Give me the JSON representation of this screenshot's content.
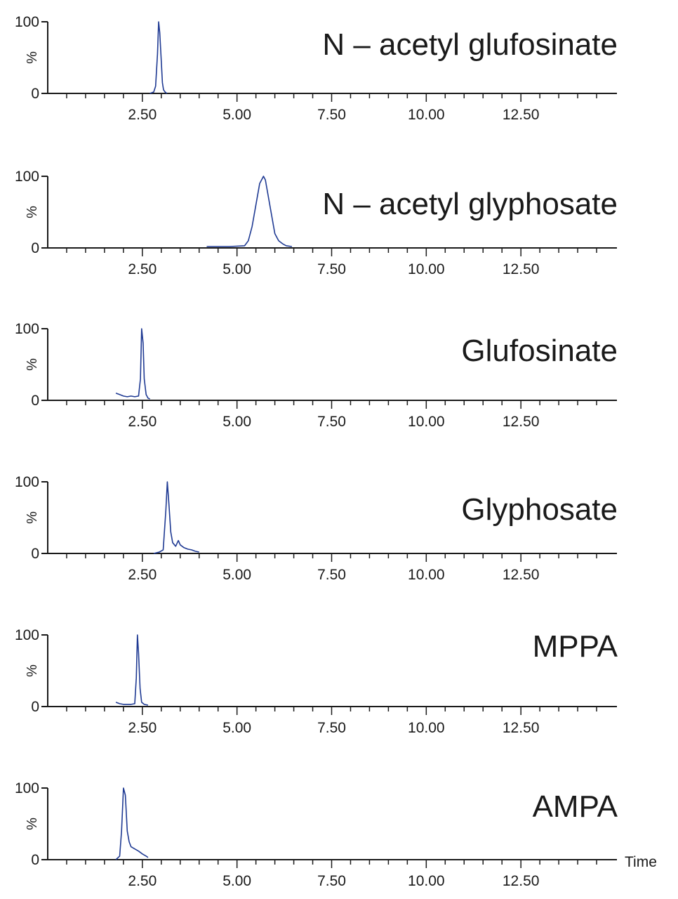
{
  "chart_data": [
    {
      "type": "line",
      "title": "N – acetyl glufosinate",
      "ylabel": "%",
      "xlim": [
        0,
        15
      ],
      "ylim": [
        0,
        100
      ],
      "y_ticks": [
        "100",
        "0"
      ],
      "x_tick_labels": [
        "2.50",
        "5.00",
        "7.50",
        "10.00",
        "12.50"
      ],
      "line_color": "#1f3a93",
      "series": [
        {
          "x": [
            2.7,
            2.8,
            2.85,
            2.9,
            2.93,
            2.96,
            3.0,
            3.03,
            3.06,
            3.1,
            3.15
          ],
          "y": [
            0,
            2,
            10,
            55,
            100,
            85,
            45,
            15,
            5,
            2,
            0
          ]
        }
      ]
    },
    {
      "type": "line",
      "title": "N – acetyl glyphosate",
      "ylabel": "%",
      "xlim": [
        0,
        15
      ],
      "ylim": [
        0,
        100
      ],
      "y_ticks": [
        "100",
        "0"
      ],
      "x_tick_labels": [
        "2.50",
        "5.00",
        "7.50",
        "10.00",
        "12.50"
      ],
      "line_color": "#1f3a93",
      "series": [
        {
          "x": [
            4.2,
            4.8,
            5.2,
            5.3,
            5.4,
            5.5,
            5.6,
            5.7,
            5.75,
            5.8,
            5.9,
            6.0,
            6.1,
            6.2,
            6.3,
            6.45
          ],
          "y": [
            2,
            2,
            3,
            10,
            30,
            60,
            90,
            100,
            95,
            80,
            50,
            20,
            10,
            6,
            3,
            2
          ]
        }
      ]
    },
    {
      "type": "line",
      "title": "Glufosinate",
      "ylabel": "%",
      "xlim": [
        0,
        15
      ],
      "ylim": [
        0,
        100
      ],
      "y_ticks": [
        "100",
        "0"
      ],
      "x_tick_labels": [
        "2.50",
        "5.00",
        "7.50",
        "10.00",
        "12.50"
      ],
      "line_color": "#1f3a93",
      "series": [
        {
          "x": [
            1.8,
            1.9,
            2.0,
            2.1,
            2.2,
            2.3,
            2.4,
            2.45,
            2.48,
            2.52,
            2.55,
            2.6,
            2.65,
            2.7
          ],
          "y": [
            10,
            8,
            6,
            5,
            6,
            5,
            6,
            30,
            100,
            80,
            30,
            8,
            3,
            2
          ]
        }
      ]
    },
    {
      "type": "line",
      "title": "Glyphosate",
      "ylabel": "%",
      "xlim": [
        0,
        15
      ],
      "ylim": [
        0,
        100
      ],
      "y_ticks": [
        "100",
        "0"
      ],
      "x_tick_labels": [
        "2.50",
        "5.00",
        "7.50",
        "10.00",
        "12.50"
      ],
      "line_color": "#1f3a93",
      "series": [
        {
          "x": [
            2.8,
            2.95,
            3.05,
            3.12,
            3.16,
            3.2,
            3.25,
            3.3,
            3.38,
            3.45,
            3.5,
            3.6,
            3.7,
            3.8,
            3.9,
            4.0
          ],
          "y": [
            0,
            2,
            5,
            60,
            100,
            70,
            30,
            15,
            10,
            18,
            12,
            8,
            6,
            5,
            3,
            2
          ]
        }
      ]
    },
    {
      "type": "line",
      "title": "MPPA",
      "ylabel": "%",
      "xlim": [
        0,
        15
      ],
      "ylim": [
        0,
        100
      ],
      "y_ticks": [
        "100",
        "0"
      ],
      "x_tick_labels": [
        "2.50",
        "5.00",
        "7.50",
        "10.00",
        "12.50"
      ],
      "line_color": "#1f3a93",
      "series": [
        {
          "x": [
            1.8,
            1.9,
            2.0,
            2.1,
            2.2,
            2.3,
            2.34,
            2.37,
            2.4,
            2.44,
            2.48,
            2.55,
            2.65
          ],
          "y": [
            6,
            4,
            3,
            3,
            3,
            4,
            40,
            100,
            75,
            25,
            6,
            3,
            2
          ]
        }
      ]
    },
    {
      "type": "line",
      "title": "AMPA",
      "ylabel": "%",
      "xlim": [
        0,
        15
      ],
      "ylim": [
        0,
        100
      ],
      "y_ticks": [
        "100",
        "0"
      ],
      "x_tick_labels": [
        "2.50",
        "5.00",
        "7.50",
        "10.00",
        "12.50"
      ],
      "x_axis_label": "Time",
      "line_color": "#1f3a93",
      "series": [
        {
          "x": [
            1.8,
            1.9,
            1.95,
            2.0,
            2.05,
            2.1,
            2.15,
            2.2,
            2.3,
            2.4,
            2.5,
            2.6,
            2.65
          ],
          "y": [
            0,
            5,
            40,
            100,
            90,
            40,
            25,
            18,
            15,
            12,
            8,
            5,
            3
          ]
        }
      ]
    }
  ]
}
